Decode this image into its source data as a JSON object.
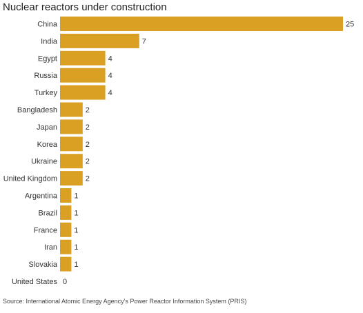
{
  "title": "Nuclear reactors under construction",
  "source": "Source: International Atomic Energy Agency's Power Reactor Information System (PRIS)",
  "chart_data": {
    "type": "bar",
    "orientation": "horizontal",
    "title": "Nuclear reactors under construction",
    "categories": [
      "China",
      "India",
      "Egypt",
      "Russia",
      "Turkey",
      "Bangladesh",
      "Japan",
      "Korea",
      "Ukraine",
      "United Kingdom",
      "Argentina",
      "Brazil",
      "France",
      "Iran",
      "Slovakia",
      "United States"
    ],
    "values": [
      25,
      7,
      4,
      4,
      4,
      2,
      2,
      2,
      2,
      2,
      1,
      1,
      1,
      1,
      1,
      0
    ],
    "bar_color": "#DAA024",
    "xlim": [
      0,
      25
    ],
    "grid": false,
    "legend": "none"
  }
}
